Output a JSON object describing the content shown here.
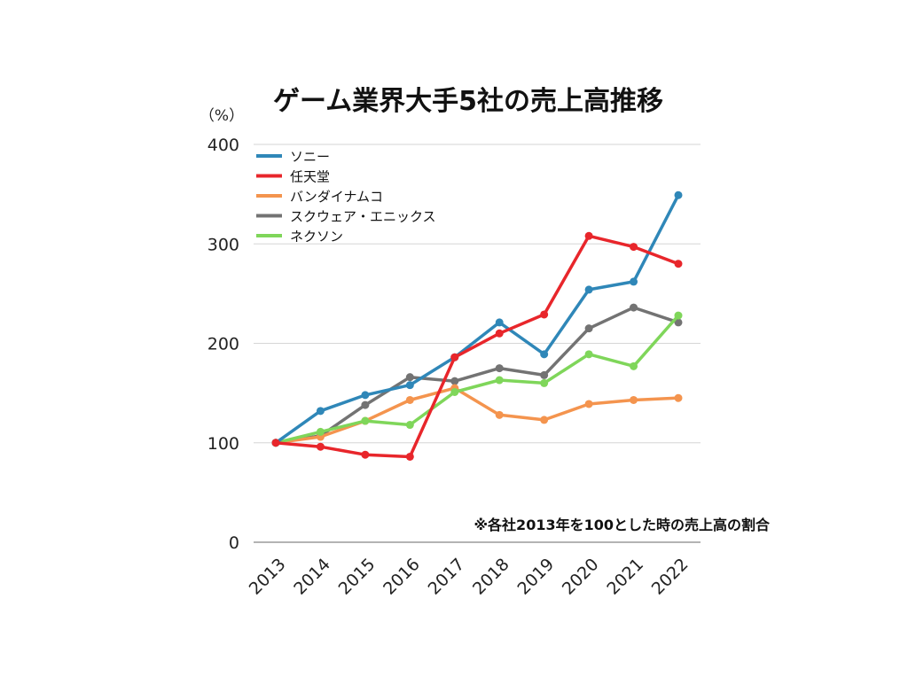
{
  "chart_data": {
    "type": "line",
    "title": "ゲーム業界大手5社の売上高推移",
    "ylabel": "（%）",
    "xlabel": "",
    "note": "※各社2013年を100とした時の売上高の割合",
    "x": [
      "2013",
      "2014",
      "2015",
      "2016",
      "2017",
      "2018",
      "2019",
      "2020",
      "2021",
      "2022"
    ],
    "ylim": [
      0,
      400
    ],
    "yticks": [
      0,
      100,
      200,
      300,
      400
    ],
    "grid": true,
    "legend_position": "top-left",
    "series": [
      {
        "name": "ソニー",
        "color": "#2f87b8",
        "values": [
          100,
          132,
          148,
          158,
          186,
          221,
          189,
          254,
          262,
          349
        ]
      },
      {
        "name": "任天堂",
        "color": "#e8262b",
        "values": [
          100,
          96,
          88,
          86,
          186,
          210,
          229,
          308,
          297,
          280
        ]
      },
      {
        "name": "バンダイナムコ",
        "color": "#f4944e",
        "values": [
          100,
          106,
          122,
          143,
          155,
          128,
          123,
          139,
          143,
          145
        ]
      },
      {
        "name": "スクウェア・エニックス",
        "color": "#737373",
        "values": [
          100,
          107,
          138,
          166,
          162,
          175,
          168,
          215,
          236,
          221
        ]
      },
      {
        "name": "ネクソン",
        "color": "#7fd65a",
        "values": [
          100,
          111,
          122,
          118,
          151,
          163,
          160,
          189,
          177,
          228
        ]
      }
    ]
  }
}
